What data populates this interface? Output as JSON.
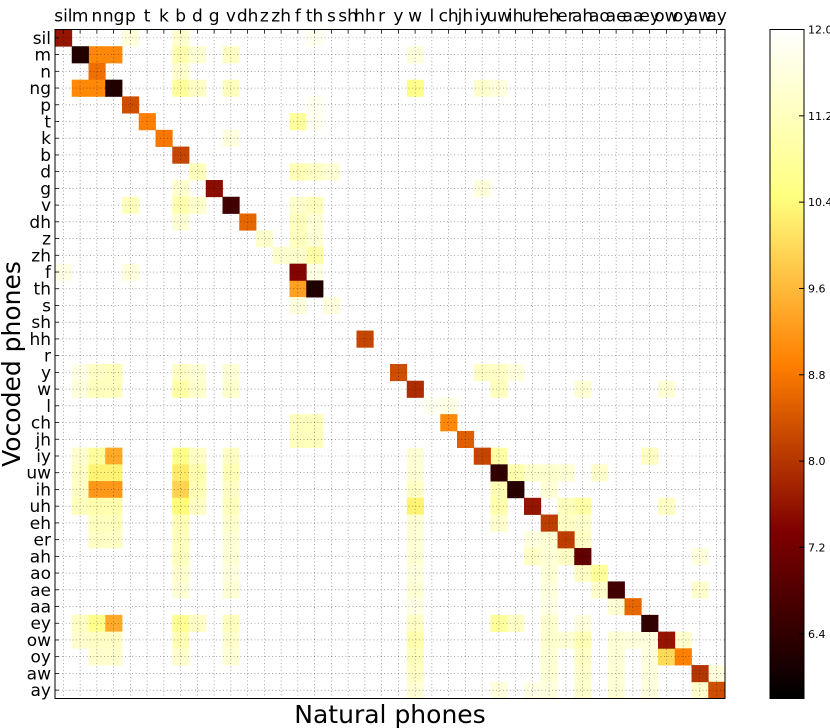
{
  "chart_data": {
    "type": "heatmap",
    "title": "",
    "xlabel": "Natural phones",
    "ylabel": "Vocoded phones",
    "phones": [
      "sil",
      "m",
      "n",
      "ng",
      "p",
      "t",
      "k",
      "b",
      "d",
      "g",
      "v",
      "dh",
      "z",
      "zh",
      "f",
      "th",
      "s",
      "sh",
      "hh",
      "r",
      "y",
      "w",
      "l",
      "ch",
      "jh",
      "iy",
      "uw",
      "ih",
      "uh",
      "eh",
      "er",
      "ah",
      "ao",
      "ae",
      "aa",
      "ey",
      "ow",
      "oy",
      "aw",
      "ay"
    ],
    "grid": true,
    "colormap": "afmhot",
    "colorbar": {
      "min": 5.8,
      "max": 12.0,
      "ticks": [
        "6.4",
        "7.2",
        "8.0",
        "8.8",
        "9.6",
        "10.4",
        "11.2",
        "12.0"
      ]
    },
    "background_value": 12.0,
    "diagonal": [
      7.6,
      6.2,
      8.7,
      6.2,
      8.3,
      8.9,
      8.8,
      8.2,
      11.2,
      7.5,
      6.6,
      8.6,
      11.4,
      11.4,
      7.4,
      6.2,
      11.6,
      12.0,
      8.2,
      12.0,
      8.3,
      7.9,
      11.8,
      9.0,
      8.5,
      8.2,
      6.4,
      6.3,
      7.6,
      8.1,
      8.1,
      7.0,
      10.8,
      6.6,
      8.6,
      6.4,
      7.6,
      8.9,
      8.0,
      8.3
    ],
    "cells": [
      [
        0,
        4,
        11.6
      ],
      [
        0,
        7,
        11.4
      ],
      [
        0,
        15,
        11.8
      ],
      [
        1,
        2,
        9.0
      ],
      [
        1,
        3,
        9.0
      ],
      [
        1,
        7,
        11.0
      ],
      [
        1,
        8,
        11.5
      ],
      [
        1,
        10,
        11.3
      ],
      [
        1,
        21,
        11.6
      ],
      [
        2,
        2,
        8.7
      ],
      [
        2,
        7,
        11.4
      ],
      [
        3,
        1,
        9.0
      ],
      [
        3,
        2,
        9.0
      ],
      [
        3,
        7,
        10.8
      ],
      [
        3,
        8,
        11.3
      ],
      [
        3,
        10,
        11.2
      ],
      [
        3,
        21,
        10.6
      ],
      [
        3,
        25,
        11.4
      ],
      [
        3,
        26,
        11.6
      ],
      [
        4,
        15,
        11.8
      ],
      [
        5,
        14,
        10.8
      ],
      [
        5,
        15,
        11.8
      ],
      [
        6,
        10,
        11.6
      ],
      [
        8,
        14,
        11.1
      ],
      [
        8,
        15,
        11.3
      ],
      [
        8,
        16,
        11.5
      ],
      [
        9,
        7,
        11.4
      ],
      [
        9,
        25,
        11.6
      ],
      [
        10,
        4,
        11.2
      ],
      [
        10,
        7,
        11.0
      ],
      [
        10,
        8,
        11.4
      ],
      [
        10,
        14,
        11.4
      ],
      [
        10,
        15,
        11.2
      ],
      [
        11,
        7,
        11.5
      ],
      [
        11,
        14,
        11.2
      ],
      [
        11,
        15,
        11.5
      ],
      [
        12,
        14,
        11.2
      ],
      [
        12,
        15,
        11.5
      ],
      [
        13,
        14,
        11.4
      ],
      [
        13,
        15,
        10.9
      ],
      [
        14,
        0,
        11.7
      ],
      [
        14,
        4,
        11.6
      ],
      [
        14,
        15,
        11.7
      ],
      [
        15,
        14,
        9.3
      ],
      [
        16,
        14,
        11.6
      ],
      [
        20,
        1,
        11.7
      ],
      [
        20,
        2,
        11.3
      ],
      [
        20,
        3,
        11.2
      ],
      [
        20,
        7,
        11.3
      ],
      [
        20,
        8,
        11.5
      ],
      [
        20,
        10,
        11.5
      ],
      [
        20,
        25,
        11.3
      ],
      [
        20,
        26,
        11.3
      ],
      [
        20,
        27,
        11.6
      ],
      [
        21,
        1,
        11.6
      ],
      [
        21,
        2,
        11.2
      ],
      [
        21,
        3,
        11.2
      ],
      [
        21,
        7,
        10.9
      ],
      [
        21,
        8,
        11.4
      ],
      [
        21,
        10,
        11.4
      ],
      [
        21,
        26,
        11.2
      ],
      [
        21,
        31,
        11.5
      ],
      [
        21,
        36,
        11.5
      ],
      [
        22,
        23,
        11.7
      ],
      [
        23,
        14,
        11.2
      ],
      [
        23,
        15,
        11.2
      ],
      [
        24,
        14,
        11.2
      ],
      [
        24,
        15,
        11.2
      ],
      [
        25,
        1,
        11.4
      ],
      [
        25,
        2,
        10.8
      ],
      [
        25,
        3,
        9.4
      ],
      [
        25,
        7,
        10.6
      ],
      [
        25,
        8,
        11.3
      ],
      [
        25,
        10,
        11.3
      ],
      [
        25,
        21,
        11.5
      ],
      [
        25,
        26,
        10.9
      ],
      [
        25,
        35,
        11.3
      ],
      [
        26,
        1,
        11.3
      ],
      [
        26,
        2,
        10.3
      ],
      [
        26,
        3,
        10.3
      ],
      [
        26,
        7,
        10.2
      ],
      [
        26,
        8,
        11.0
      ],
      [
        26,
        10,
        11.1
      ],
      [
        26,
        21,
        11.5
      ],
      [
        26,
        27,
        11.0
      ],
      [
        26,
        28,
        11.4
      ],
      [
        26,
        29,
        11.4
      ],
      [
        26,
        30,
        11.5
      ],
      [
        26,
        32,
        11.4
      ],
      [
        27,
        1,
        11.3
      ],
      [
        27,
        2,
        9.2
      ],
      [
        27,
        3,
        9.2
      ],
      [
        27,
        7,
        9.9
      ],
      [
        27,
        8,
        11.1
      ],
      [
        27,
        10,
        11.3
      ],
      [
        27,
        21,
        11.3
      ],
      [
        27,
        26,
        11.1
      ],
      [
        27,
        29,
        11.5
      ],
      [
        28,
        1,
        11.2
      ],
      [
        28,
        2,
        11.0
      ],
      [
        28,
        3,
        11.0
      ],
      [
        28,
        7,
        10.4
      ],
      [
        28,
        8,
        11.3
      ],
      [
        28,
        10,
        11.2
      ],
      [
        28,
        21,
        10.3
      ],
      [
        28,
        26,
        11.0
      ],
      [
        28,
        30,
        11.2
      ],
      [
        28,
        31,
        10.9
      ],
      [
        28,
        36,
        11.3
      ],
      [
        29,
        2,
        11.2
      ],
      [
        29,
        3,
        11.2
      ],
      [
        29,
        7,
        11.1
      ],
      [
        29,
        10,
        11.4
      ],
      [
        29,
        21,
        11.5
      ],
      [
        29,
        26,
        11.4
      ],
      [
        29,
        30,
        11.3
      ],
      [
        29,
        31,
        11.4
      ],
      [
        30,
        2,
        11.3
      ],
      [
        30,
        3,
        11.3
      ],
      [
        30,
        7,
        11.2
      ],
      [
        30,
        10,
        11.5
      ],
      [
        30,
        21,
        11.5
      ],
      [
        30,
        28,
        11.6
      ],
      [
        30,
        29,
        11.5
      ],
      [
        30,
        31,
        11.3
      ],
      [
        31,
        7,
        11.2
      ],
      [
        31,
        10,
        11.5
      ],
      [
        31,
        21,
        11.5
      ],
      [
        31,
        28,
        11.3
      ],
      [
        31,
        29,
        11.5
      ],
      [
        31,
        30,
        11.3
      ],
      [
        31,
        38,
        11.6
      ],
      [
        32,
        7,
        11.4
      ],
      [
        32,
        10,
        11.6
      ],
      [
        32,
        21,
        11.6
      ],
      [
        32,
        29,
        11.5
      ],
      [
        32,
        31,
        11.3
      ],
      [
        33,
        7,
        11.5
      ],
      [
        33,
        10,
        11.5
      ],
      [
        33,
        21,
        11.5
      ],
      [
        33,
        29,
        11.6
      ],
      [
        33,
        32,
        11.4
      ],
      [
        33,
        38,
        11.4
      ],
      [
        34,
        21,
        11.7
      ],
      [
        34,
        29,
        11.7
      ],
      [
        34,
        33,
        11.5
      ],
      [
        35,
        1,
        11.3
      ],
      [
        35,
        2,
        10.6
      ],
      [
        35,
        3,
        9.4
      ],
      [
        35,
        7,
        10.7
      ],
      [
        35,
        8,
        11.3
      ],
      [
        35,
        10,
        11.2
      ],
      [
        35,
        21,
        11.3
      ],
      [
        35,
        26,
        10.8
      ],
      [
        35,
        27,
        11.3
      ],
      [
        35,
        29,
        11.4
      ],
      [
        35,
        31,
        11.6
      ],
      [
        36,
        1,
        11.4
      ],
      [
        36,
        2,
        11.3
      ],
      [
        36,
        3,
        11.3
      ],
      [
        36,
        7,
        11.1
      ],
      [
        36,
        10,
        11.4
      ],
      [
        36,
        21,
        11.0
      ],
      [
        36,
        29,
        11.4
      ],
      [
        36,
        30,
        11.5
      ],
      [
        36,
        31,
        11.1
      ],
      [
        36,
        33,
        11.5
      ],
      [
        36,
        34,
        11.6
      ],
      [
        36,
        35,
        11.6
      ],
      [
        36,
        37,
        11.4
      ],
      [
        37,
        2,
        11.4
      ],
      [
        37,
        3,
        11.4
      ],
      [
        37,
        7,
        11.4
      ],
      [
        37,
        10,
        11.5
      ],
      [
        37,
        21,
        11.2
      ],
      [
        37,
        29,
        11.5
      ],
      [
        37,
        31,
        11.3
      ],
      [
        37,
        33,
        11.5
      ],
      [
        37,
        35,
        11.6
      ],
      [
        37,
        36,
        10.0
      ],
      [
        38,
        21,
        11.3
      ],
      [
        38,
        29,
        11.5
      ],
      [
        38,
        31,
        11.4
      ],
      [
        38,
        33,
        11.5
      ],
      [
        38,
        35,
        11.6
      ],
      [
        38,
        39,
        11.6
      ],
      [
        39,
        21,
        11.5
      ],
      [
        39,
        26,
        11.6
      ],
      [
        39,
        28,
        11.7
      ],
      [
        39,
        29,
        11.6
      ],
      [
        39,
        31,
        11.4
      ],
      [
        39,
        33,
        11.5
      ],
      [
        39,
        35,
        11.6
      ],
      [
        39,
        38,
        11.4
      ]
    ]
  }
}
